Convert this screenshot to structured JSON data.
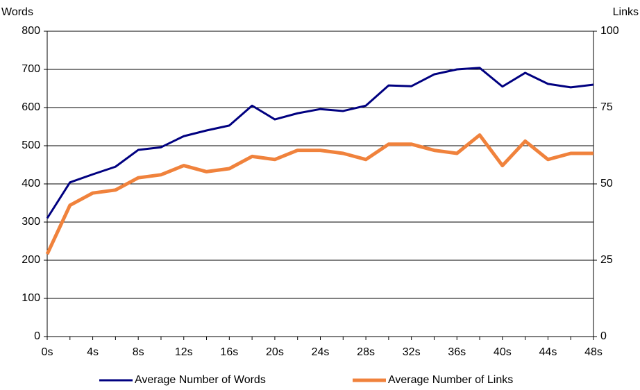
{
  "chart_data": {
    "type": "line",
    "y_label": "Words",
    "y2_label": "Links",
    "categories": [
      "0s",
      null,
      "4s",
      null,
      "8s",
      null,
      "12s",
      null,
      "16s",
      null,
      "20s",
      null,
      "24s",
      null,
      "28s",
      null,
      "32s",
      null,
      "36s",
      null,
      "40s",
      null,
      "44s",
      null,
      "48s"
    ],
    "series": [
      {
        "name": "Average Number of Words",
        "color": "#000080",
        "axis": "y",
        "values": [
          310,
          404,
          425,
          445,
          489,
          496,
          525,
          540,
          553,
          605,
          569,
          585,
          596,
          591,
          605,
          658,
          656,
          687,
          700,
          704,
          655,
          691,
          662,
          653,
          660
        ]
      },
      {
        "name": "Average Number of Links",
        "color": "#f0823c",
        "axis": "y2",
        "values": [
          27,
          43,
          47,
          48,
          52,
          53,
          56,
          54,
          55,
          59,
          58,
          61,
          61,
          60,
          58,
          63,
          63,
          61,
          60,
          66,
          56,
          64,
          58,
          60,
          60
        ]
      }
    ],
    "ylim": [
      0,
      800
    ],
    "yticks": [
      0,
      100,
      200,
      300,
      400,
      500,
      600,
      700,
      800
    ],
    "y2lim": [
      0,
      100
    ],
    "y2ticks": [
      0,
      25,
      50,
      75,
      100
    ],
    "grid": true,
    "legend": "bottom"
  }
}
